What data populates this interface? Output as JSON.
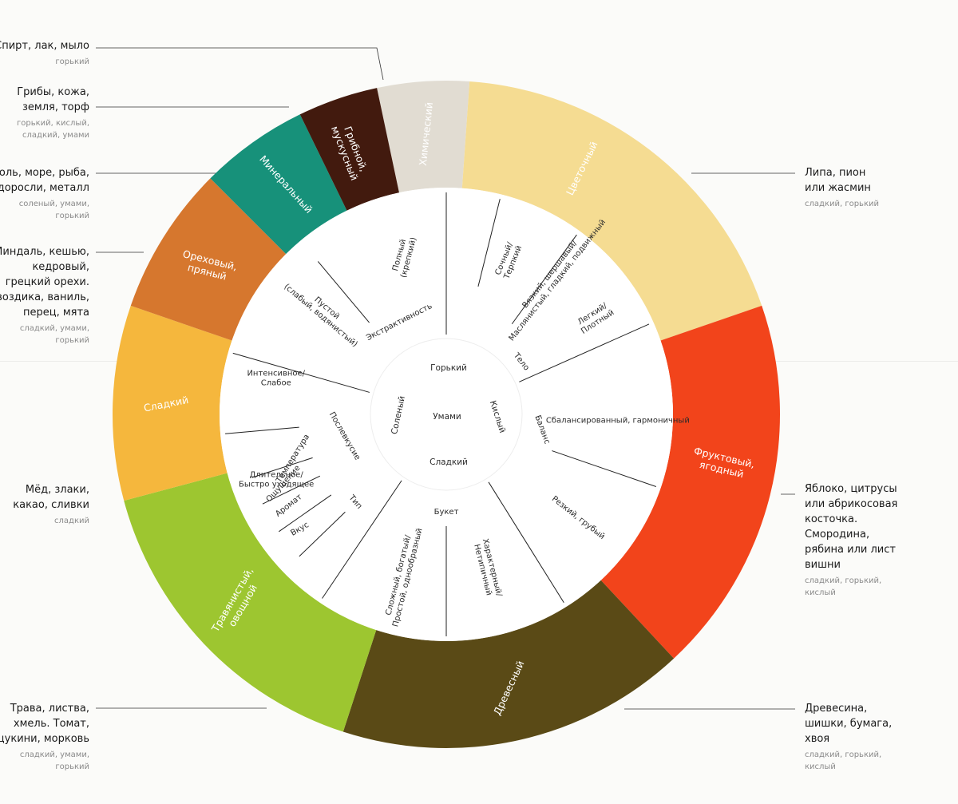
{
  "outer_ring": [
    {
      "id": "chemical",
      "label": "Химический",
      "color": "#e1dcd2",
      "text_color": "#ffffff"
    },
    {
      "id": "floral",
      "label": "Цветочный",
      "color": "#f5dc92",
      "text_color": "#ffffff"
    },
    {
      "id": "fruity",
      "label": "Фруктовый, ягодный",
      "color": "#f2441b",
      "text_color": "#ffffff"
    },
    {
      "id": "woody",
      "label": "Древесный",
      "color": "#5a4a16",
      "text_color": "#ffffff"
    },
    {
      "id": "herbal",
      "label": "Травянистый, овощной",
      "color": "#9dc630",
      "text_color": "#ffffff"
    },
    {
      "id": "sweet",
      "label": "Сладкий",
      "color": "#f5b73d",
      "text_color": "#ffffff"
    },
    {
      "id": "nutty",
      "label": "Ореховый, пряный",
      "color": "#d6772e",
      "text_color": "#ffffff"
    },
    {
      "id": "mineral",
      "label": "Минеральный",
      "color": "#17917a",
      "text_color": "#ffffff"
    },
    {
      "id": "mushroom",
      "label": "Грибной, мускусный",
      "color": "#421a0e",
      "text_color": "#ffffff"
    }
  ],
  "inner_ring": {
    "extractivity": {
      "title": "Экстрактивность",
      "full": "Полный (крепкий)",
      "empty": "Пустой (слабый, водянистый)"
    },
    "body": {
      "title": "Тело",
      "juicy": "Сочный/ Терпкий",
      "viscous": "Вязкий, шершавый/ Маслянистый, гладкий, подвижный",
      "light": "Легкий/ Плотный"
    },
    "balance": {
      "title": "Баланс",
      "balanced": "Сбалансированный, гармоничный",
      "harsh": "Резкий, грубый"
    },
    "bouquet": {
      "title": "Букет",
      "characteristic": "Характерный/ Нетипичный",
      "complex": "Сложный, богатый/ Простой, однообразный"
    },
    "type": {
      "title": "Тип",
      "taste": "Вкус",
      "aroma": "Аромат",
      "sensation": "Ощущение",
      "temperature": "Температура"
    },
    "aftertaste": {
      "title": "Послевкусие",
      "long": "Длительное/ Быстро уходящее",
      "intensive": "Интенсивное/ Слабое"
    }
  },
  "center": {
    "bitter": "Горький",
    "sour": "Кислый",
    "sweet": "Сладкий",
    "salty": "Соленый",
    "umami": "Умами"
  },
  "annotations": {
    "chemical": {
      "text": "Спирт, лак, мыло",
      "tastes": "горький"
    },
    "mushroom": {
      "text": "Грибы, кожа,\nземля, торф",
      "tastes": "горький, кислый,\nсладкий, умами"
    },
    "mineral": {
      "text": "Соль, море, рыба,\nводоросли, металл",
      "tastes": "соленый, умами,\nгорький"
    },
    "nutty": {
      "text": "Миндаль, кешью,\nкедровый,\nгрецкий орехи.\nГвоздика, ваниль,\nперец, мята",
      "tastes": "сладкий, умами,\nгорький"
    },
    "sweet": {
      "text": "Мёд, злаки,\nкакао, сливки",
      "tastes": "сладкий"
    },
    "herbal": {
      "text": "Трава, листва,\nхмель. Томат,\nцукини, морковь",
      "tastes": "сладкий, умами,\nгорький"
    },
    "floral": {
      "text": "Липа, пион\nили жасмин",
      "tastes": "сладкий, горький"
    },
    "fruity": {
      "text": "Яблоко, цитрусы\nили абрикосовая\nкосточка.\nСмородина,\nрябина или лист\nвишни",
      "tastes": "сладкий, горький,\nкислый"
    },
    "woody": {
      "text": "Древесина,\nшишки, бумага,\nхвоя",
      "tastes": "сладкий, горький,\nкислый"
    }
  }
}
